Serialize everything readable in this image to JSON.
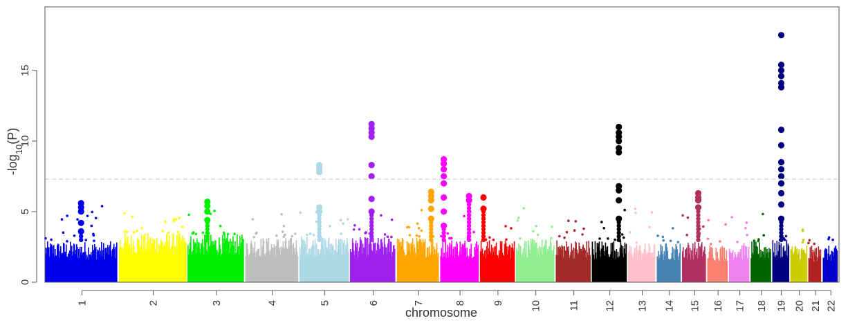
{
  "chart_data": {
    "type": "scatter",
    "subtype": "manhattan",
    "title": "",
    "xlabel": "chromosome",
    "ylabel_parts": {
      "base": "-log",
      "sub": "10",
      "tail": "(P)"
    },
    "ylim": [
      0,
      19.5
    ],
    "yticks": [
      0,
      5,
      10,
      15
    ],
    "significance_threshold": 7.3,
    "threshold_style": "dashed light gray line",
    "grid": false,
    "legend": "none",
    "chromosomes": [
      {
        "label": "1",
        "x_start": 1.0,
        "x_end": 3.05,
        "color": "#0000ee",
        "base_max": 2.9,
        "peak": 5.6
      },
      {
        "label": "2",
        "x_start": 3.05,
        "x_end": 4.95,
        "color": "#ffff00",
        "base_max": 3.5,
        "peak": 4.8
      },
      {
        "label": "3",
        "x_start": 4.95,
        "x_end": 6.55,
        "color": "#00ee00",
        "base_max": 3.4,
        "peak": 5.7
      },
      {
        "label": "4",
        "x_start": 6.55,
        "x_end": 8.05,
        "color": "#bebebe",
        "base_max": 3.2,
        "peak": 4.7
      },
      {
        "label": "5",
        "x_start": 8.05,
        "x_end": 9.45,
        "color": "#add8e6",
        "base_max": 3.3,
        "peak": 8.3
      },
      {
        "label": "6",
        "x_start": 9.45,
        "x_end": 10.75,
        "color": "#a020f0",
        "base_max": 3.2,
        "peak": 11.2
      },
      {
        "label": "7",
        "x_start": 10.75,
        "x_end": 11.95,
        "color": "#ffa500",
        "base_max": 3.2,
        "peak": 6.4
      },
      {
        "label": "8",
        "x_start": 11.95,
        "x_end": 13.05,
        "color": "#ff00ff",
        "base_max": 3.1,
        "peak": 8.7
      },
      {
        "label": "9",
        "x_start": 13.05,
        "x_end": 14.05,
        "color": "#ff0000",
        "base_max": 3.0,
        "peak": 6.0
      },
      {
        "label": "10",
        "x_start": 14.05,
        "x_end": 15.15,
        "color": "#90ee90",
        "base_max": 3.1,
        "peak": 5.3
      },
      {
        "label": "11",
        "x_start": 15.15,
        "x_end": 16.15,
        "color": "#a52a2a",
        "base_max": 3.0,
        "peak": 4.9
      },
      {
        "label": "12",
        "x_start": 16.15,
        "x_end": 17.15,
        "color": "#000000",
        "base_max": 3.0,
        "peak": 11.0
      },
      {
        "label": "13",
        "x_start": 17.15,
        "x_end": 17.95,
        "color": "#ffc0cb",
        "base_max": 2.8,
        "peak": 5.1
      },
      {
        "label": "14",
        "x_start": 17.95,
        "x_end": 18.65,
        "color": "#4682b4",
        "base_max": 2.8,
        "peak": 4.3
      },
      {
        "label": "15",
        "x_start": 18.65,
        "x_end": 19.35,
        "color": "#b03060",
        "base_max": 2.9,
        "peak": 6.3
      },
      {
        "label": "16",
        "x_start": 19.35,
        "x_end": 19.95,
        "color": "#fa8072",
        "base_max": 2.7,
        "peak": 4.2
      },
      {
        "label": "17",
        "x_start": 19.95,
        "x_end": 20.55,
        "color": "#ee82ee",
        "base_max": 2.8,
        "peak": 4.5
      },
      {
        "label": "18",
        "x_start": 20.55,
        "x_end": 21.15,
        "color": "#006400",
        "base_max": 2.9,
        "peak": 4.6
      },
      {
        "label": "19",
        "x_start": 21.15,
        "x_end": 21.65,
        "color": "#000080",
        "base_max": 3.0,
        "peak": 17.5
      },
      {
        "label": "20",
        "x_start": 21.65,
        "x_end": 22.15,
        "color": "#cdcd00",
        "base_max": 2.7,
        "peak": 4.1
      },
      {
        "label": "21",
        "x_start": 22.15,
        "x_end": 22.55,
        "color": "#b22222",
        "base_max": 2.6,
        "peak": 4.4
      },
      {
        "label": "22",
        "x_start": 22.55,
        "x_end": 23.0,
        "color": "#0000cd",
        "base_max": 2.6,
        "peak": 3.8
      }
    ],
    "peak_columns": [
      {
        "chromosome": "1",
        "x": 2.0,
        "y_values": [
          3.6,
          4.2,
          5.0,
          5.3,
          5.6
        ]
      },
      {
        "chromosome": "3",
        "x": 5.5,
        "y_values": [
          4.4,
          5.0,
          5.4,
          5.7
        ]
      },
      {
        "chromosome": "5",
        "x": 8.6,
        "y_values": [
          5.0,
          5.3,
          7.8,
          8.0,
          8.2,
          8.3
        ]
      },
      {
        "chromosome": "6",
        "x": 10.05,
        "y_values": [
          5.0,
          5.9,
          7.5,
          8.3,
          10.3,
          10.6,
          10.9,
          11.2
        ]
      },
      {
        "chromosome": "7",
        "x": 11.7,
        "y_values": [
          4.5,
          5.2,
          5.8,
          6.1,
          6.4
        ]
      },
      {
        "chromosome": "8",
        "x": 12.05,
        "y_values": [
          4.0,
          5.0,
          6.0,
          7.0,
          7.5,
          8.0,
          8.4,
          8.7
        ]
      },
      {
        "chromosome": "8",
        "x": 12.75,
        "y_values": [
          5.8,
          6.1
        ]
      },
      {
        "chromosome": "9",
        "x": 13.15,
        "y_values": [
          5.2,
          6.0
        ]
      },
      {
        "chromosome": "12",
        "x": 16.9,
        "y_values": [
          4.5,
          5.8,
          6.5,
          6.8,
          9.2,
          9.5,
          10.0,
          10.3,
          10.6,
          11.0
        ]
      },
      {
        "chromosome": "15",
        "x": 19.1,
        "y_values": [
          5.3,
          5.8,
          6.0,
          6.3
        ]
      },
      {
        "chromosome": "19",
        "x": 21.4,
        "y_values": [
          4.5,
          5.5,
          6.3,
          7.0,
          7.5,
          8.0,
          8.5,
          9.7,
          10.8,
          13.8,
          14.1,
          14.6,
          15.0,
          15.4,
          17.5
        ]
      }
    ]
  }
}
